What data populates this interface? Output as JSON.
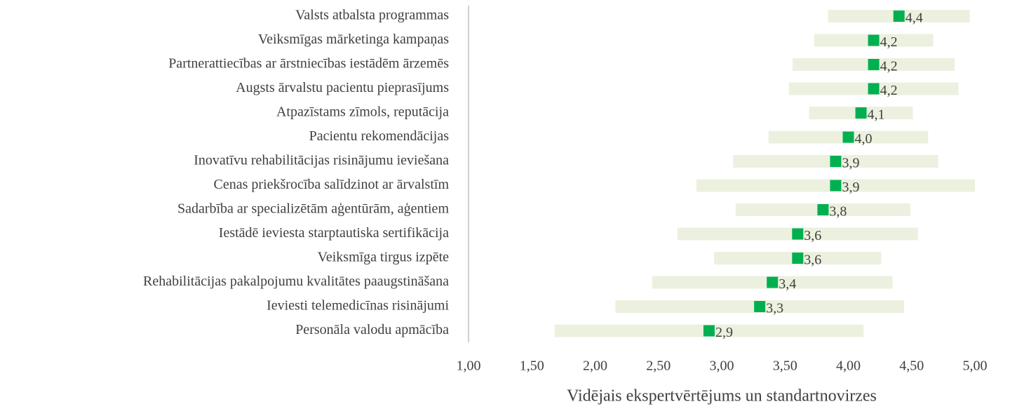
{
  "chart_data": {
    "type": "dot-range",
    "categories": [
      "Valsts atbalsta programmas",
      "Veiksmīgas mārketinga kampaņas",
      "Partnerattiecības ar ārstniecības iestādēm ārzemēs",
      "Augsts ārvalstu pacientu pieprasījums",
      "Atpazīstams zīmols, reputācija",
      "Pacientu rekomendācijas",
      "Inovatīvu rehabilitācijas risinājumu ieviešana",
      "Cenas priekšrocība salīdzinot ar ārvalstīm",
      "Sadarbība ar specializētām aģentūrām, aģentiem",
      "Iestādē ieviesta starptautiska sertifikācija",
      "Veiksmīga tirgus izpēte",
      "Rehabilitācijas pakalpojumu kvalitātes paaugstināšana",
      "Ieviesti telemedicīnas risinājumi",
      "Personāla valodu apmācība"
    ],
    "values": [
      4.4,
      4.2,
      4.2,
      4.2,
      4.1,
      4.0,
      3.9,
      3.9,
      3.8,
      3.6,
      3.6,
      3.4,
      3.3,
      2.9
    ],
    "value_labels": [
      "4,4",
      "4,2",
      "4,2",
      "4,2",
      "4,1",
      "4,0",
      "3,9",
      "3,9",
      "3,8",
      "3,6",
      "3,6",
      "3,4",
      "3,3",
      "2,9"
    ],
    "errors": [
      0.56,
      0.47,
      0.64,
      0.67,
      0.41,
      0.63,
      0.81,
      1.1,
      0.69,
      0.95,
      0.66,
      0.95,
      1.14,
      1.22
    ],
    "color": "#00b050",
    "range_color": "#ebf1de",
    "xlim": [
      1,
      5
    ],
    "xticks": [
      {
        "value": 1,
        "label": "1,00"
      },
      {
        "value": 1.5,
        "label": "1,50"
      },
      {
        "value": 2,
        "label": "2,00"
      },
      {
        "value": 2.5,
        "label": "2,50"
      },
      {
        "value": 3,
        "label": "3,00"
      },
      {
        "value": 3.5,
        "label": "3,50"
      },
      {
        "value": 4,
        "label": "4,00"
      },
      {
        "value": 4.5,
        "label": "4,50"
      },
      {
        "value": 5,
        "label": "5,00"
      }
    ],
    "xlabel": "Vidējais ekspertvērtējums un standartnovirzes"
  }
}
